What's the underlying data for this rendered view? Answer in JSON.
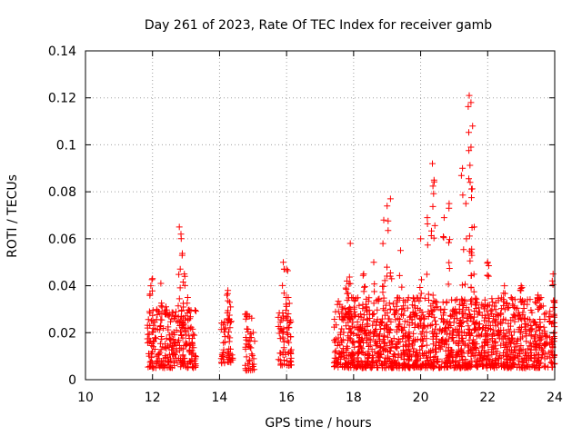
{
  "chart_data": {
    "type": "scatter",
    "title": "Day 261 of 2023, Rate Of TEC Index for receiver gamb",
    "xlabel": "GPS time / hours",
    "ylabel": "ROTI / TECUs",
    "xlim": [
      10,
      24
    ],
    "ylim": [
      0,
      0.14
    ],
    "x_ticks": [
      "10",
      "12",
      "14",
      "16",
      "18",
      "20",
      "22",
      "24"
    ],
    "y_ticks": [
      "0",
      "0.02",
      "0.04",
      "0.06",
      "0.08",
      "0.1",
      "0.12",
      "0.14"
    ],
    "grid": true,
    "marker": "+",
    "color": "#ff0000",
    "clusters": [
      {
        "x_start": 11.85,
        "x_end": 13.3,
        "y_min": 0.005,
        "y_max": 0.03,
        "count": 260
      },
      {
        "x_start": 14.05,
        "x_end": 14.4,
        "y_min": 0.007,
        "y_max": 0.025,
        "count": 45
      },
      {
        "x_start": 14.75,
        "x_end": 15.05,
        "y_min": 0.004,
        "y_max": 0.028,
        "count": 40
      },
      {
        "x_start": 15.75,
        "x_end": 16.15,
        "y_min": 0.006,
        "y_max": 0.03,
        "count": 60
      },
      {
        "x_start": 17.4,
        "x_end": 24.0,
        "y_min": 0.005,
        "y_max": 0.035,
        "count": 1500
      }
    ],
    "peaks": [
      {
        "x": 11.95,
        "y": 0.04
      },
      {
        "x": 12.0,
        "y": 0.043
      },
      {
        "x": 12.25,
        "y": 0.041
      },
      {
        "x": 12.4,
        "y": 0.031
      },
      {
        "x": 12.8,
        "y": 0.065
      },
      {
        "x": 12.85,
        "y": 0.062
      },
      {
        "x": 12.95,
        "y": 0.045
      },
      {
        "x": 13.05,
        "y": 0.035
      },
      {
        "x": 14.25,
        "y": 0.038
      },
      {
        "x": 14.3,
        "y": 0.033
      },
      {
        "x": 14.8,
        "y": 0.028
      },
      {
        "x": 15.9,
        "y": 0.05
      },
      {
        "x": 16.0,
        "y": 0.047
      },
      {
        "x": 16.05,
        "y": 0.035
      },
      {
        "x": 17.8,
        "y": 0.042
      },
      {
        "x": 17.9,
        "y": 0.058
      },
      {
        "x": 18.3,
        "y": 0.045
      },
      {
        "x": 18.6,
        "y": 0.05
      },
      {
        "x": 18.9,
        "y": 0.068
      },
      {
        "x": 19.0,
        "y": 0.074
      },
      {
        "x": 19.1,
        "y": 0.077
      },
      {
        "x": 19.4,
        "y": 0.055
      },
      {
        "x": 20.0,
        "y": 0.06
      },
      {
        "x": 20.2,
        "y": 0.069
      },
      {
        "x": 20.35,
        "y": 0.092
      },
      {
        "x": 20.4,
        "y": 0.085
      },
      {
        "x": 20.7,
        "y": 0.069
      },
      {
        "x": 20.85,
        "y": 0.075
      },
      {
        "x": 21.25,
        "y": 0.09
      },
      {
        "x": 21.35,
        "y": 0.075
      },
      {
        "x": 21.45,
        "y": 0.121
      },
      {
        "x": 21.5,
        "y": 0.118
      },
      {
        "x": 21.55,
        "y": 0.108
      },
      {
        "x": 21.5,
        "y": 0.099
      },
      {
        "x": 21.6,
        "y": 0.065
      },
      {
        "x": 22.0,
        "y": 0.05
      },
      {
        "x": 22.5,
        "y": 0.04
      },
      {
        "x": 23.0,
        "y": 0.04
      },
      {
        "x": 23.5,
        "y": 0.036
      },
      {
        "x": 23.95,
        "y": 0.045
      }
    ]
  }
}
